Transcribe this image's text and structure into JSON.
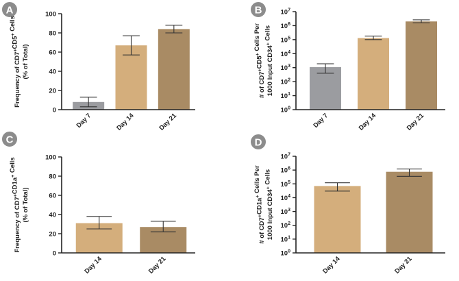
{
  "colors": {
    "day7": "#9b9ca0",
    "day14": "#d4ae7c",
    "day21": "#a98b64",
    "badge": "#8c8c8c"
  },
  "chart_data": [
    {
      "panel": "A",
      "type": "bar",
      "scale": "linear",
      "categories": [
        "Day 7",
        "Day 14",
        "Day 21"
      ],
      "values": [
        8,
        67,
        84
      ],
      "errors": [
        [
          3,
          13
        ],
        [
          57,
          77
        ],
        [
          80,
          88
        ]
      ],
      "bar_colors": [
        "#9b9ca0",
        "#d4ae7c",
        "#a98b64"
      ],
      "ylim": [
        0,
        100
      ],
      "yticks": [
        0,
        20,
        40,
        60,
        80,
        100
      ],
      "ytick_labels": [
        "0",
        "20",
        "40",
        "60",
        "80",
        "100"
      ],
      "ylabel_lines": [
        [
          {
            "t": "Frequency of CD7"
          },
          {
            "t": "+",
            "sup": true
          },
          {
            "t": "CD5"
          },
          {
            "t": "+",
            "sup": true
          },
          {
            "t": " Cells"
          }
        ],
        [
          {
            "t": "(% of Total)"
          }
        ]
      ]
    },
    {
      "panel": "B",
      "type": "bar",
      "scale": "log",
      "categories": [
        "Day 7",
        "Day 14",
        "Day 21"
      ],
      "values": [
        1100,
        130000,
        2000000
      ],
      "errors": [
        [
          400,
          1900
        ],
        [
          100000,
          180000
        ],
        [
          1600000,
          2600000
        ]
      ],
      "bar_colors": [
        "#9b9ca0",
        "#d4ae7c",
        "#a98b64"
      ],
      "ylim": [
        1,
        10000000
      ],
      "yticks": [
        1,
        10,
        100,
        1000,
        10000,
        100000,
        1000000,
        10000000
      ],
      "ytick_labels": [
        {
          "base": "10",
          "exp": "0"
        },
        {
          "base": "10",
          "exp": "1"
        },
        {
          "base": "10",
          "exp": "2"
        },
        {
          "base": "10",
          "exp": "3"
        },
        {
          "base": "10",
          "exp": "4"
        },
        {
          "base": "10",
          "exp": "5"
        },
        {
          "base": "10",
          "exp": "6"
        },
        {
          "base": "10",
          "exp": "7"
        }
      ],
      "ylabel_lines": [
        [
          {
            "t": "# of CD7"
          },
          {
            "t": "+",
            "sup": true
          },
          {
            "t": "CD5"
          },
          {
            "t": "+",
            "sup": true
          },
          {
            "t": " Cells Per"
          }
        ],
        [
          {
            "t": "1000 Input CD34"
          },
          {
            "t": "+",
            "sup": true
          },
          {
            "t": " Cells"
          }
        ]
      ]
    },
    {
      "panel": "C",
      "type": "bar",
      "scale": "linear",
      "categories": [
        "Day 14",
        "Day 21"
      ],
      "values": [
        31,
        27
      ],
      "errors": [
        [
          25,
          38
        ],
        [
          22,
          33
        ]
      ],
      "bar_colors": [
        "#d4ae7c",
        "#a98b64"
      ],
      "ylim": [
        0,
        100
      ],
      "yticks": [
        0,
        20,
        40,
        60,
        80,
        100
      ],
      "ytick_labels": [
        "0",
        "20",
        "40",
        "60",
        "80",
        "100"
      ],
      "ylabel_lines": [
        [
          {
            "t": "Frequency of CD7"
          },
          {
            "t": "+",
            "sup": true
          },
          {
            "t": "CD1a"
          },
          {
            "t": "+",
            "sup": true
          },
          {
            "t": " Cells"
          }
        ],
        [
          {
            "t": "(% of Total)"
          }
        ]
      ]
    },
    {
      "panel": "D",
      "type": "bar",
      "scale": "log",
      "categories": [
        "Day 14",
        "Day 21"
      ],
      "values": [
        70000,
        750000
      ],
      "errors": [
        [
          30000,
          120000
        ],
        [
          350000,
          1200000
        ]
      ],
      "bar_colors": [
        "#d4ae7c",
        "#a98b64"
      ],
      "ylim": [
        1,
        10000000
      ],
      "yticks": [
        1,
        10,
        100,
        1000,
        10000,
        100000,
        1000000,
        10000000
      ],
      "ytick_labels": [
        {
          "base": "10",
          "exp": "0"
        },
        {
          "base": "10",
          "exp": "1"
        },
        {
          "base": "10",
          "exp": "2"
        },
        {
          "base": "10",
          "exp": "3"
        },
        {
          "base": "10",
          "exp": "4"
        },
        {
          "base": "10",
          "exp": "5"
        },
        {
          "base": "10",
          "exp": "6"
        },
        {
          "base": "10",
          "exp": "7"
        }
      ],
      "ylabel_lines": [
        [
          {
            "t": "# of CD7"
          },
          {
            "t": "+",
            "sup": true
          },
          {
            "t": "CD1a"
          },
          {
            "t": "+",
            "sup": true
          },
          {
            "t": " Cells Per"
          }
        ],
        [
          {
            "t": "1000 Input CD34"
          },
          {
            "t": "+",
            "sup": true
          },
          {
            "t": " Cells"
          }
        ]
      ]
    }
  ]
}
